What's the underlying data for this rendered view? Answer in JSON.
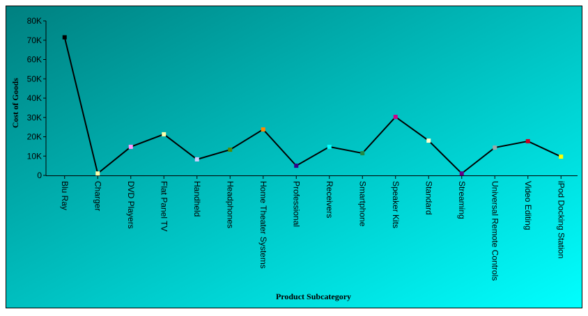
{
  "chart_data": {
    "type": "line",
    "x_label": "Product Subcategory",
    "y_label": "Cost of Goods",
    "categories": [
      "Blu Ray",
      "Charger",
      "DVD Players",
      "Flat Panel TV",
      "Handheld",
      "Headphones",
      "Home Theater Systems",
      "Professional",
      "Receivers",
      "Smartphone",
      "Speaker Kits",
      "Standard",
      "Streaming",
      "Universal Remote Controls",
      "Video Editing",
      "iPod Docking Station"
    ],
    "values": [
      71500,
      1000,
      14800,
      21300,
      8300,
      13300,
      23800,
      5000,
      14800,
      11500,
      30300,
      18000,
      1000,
      14400,
      17700,
      9700
    ],
    "color": "#000000",
    "marker_colors": [
      "#000000",
      "#ffffaa",
      "#ff99ff",
      "#ffffaa",
      "#ccccff",
      "#558800",
      "#ff8800",
      "#330088",
      "#00ffff",
      "#228844",
      "#cc0088",
      "#ffffcc",
      "#660088",
      "#99aaaa",
      "#cc0022",
      "#ffff00"
    ],
    "ylim": [
      0,
      80000
    ],
    "yticks": [
      0,
      {
        "value": 10000,
        "label": "10K"
      },
      {
        "value": 20000,
        "label": "20K"
      },
      {
        "value": 30000,
        "label": "30K"
      },
      {
        "value": 40000,
        "label": "40K"
      },
      {
        "value": 50000,
        "label": "50K"
      },
      {
        "value": 60000,
        "label": "60K"
      },
      {
        "value": 70000,
        "label": "70K"
      },
      {
        "value": 80000,
        "label": "80K"
      }
    ]
  }
}
